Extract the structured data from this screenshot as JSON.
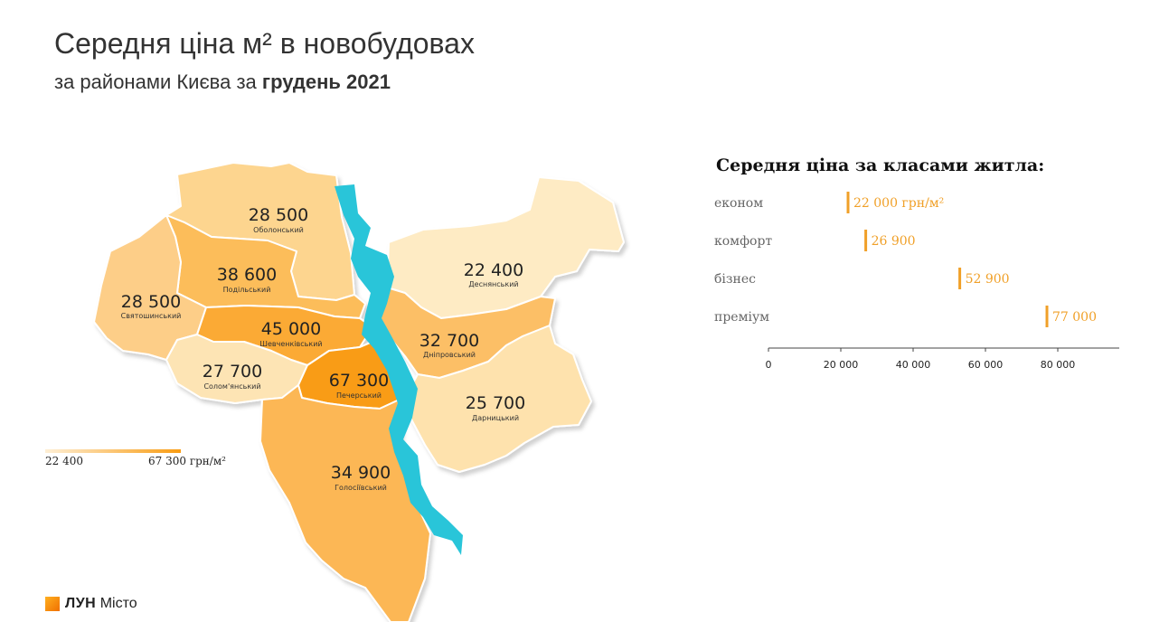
{
  "header": {
    "title": "Середня ціна м² в новобудовах",
    "subtitle_prefix": "за районами Києва за ",
    "subtitle_bold": "грудень 2021"
  },
  "map": {
    "unit": "грн/м²",
    "legend": {
      "min_label": "22 400",
      "max_label": "67 300 грн/м²",
      "min": 22400,
      "max": 67300
    },
    "river_color": "#29c5d9",
    "districts": [
      {
        "id": "obolonskyi",
        "name": "Оболонський",
        "value_label": "28 500",
        "value": 28500,
        "color": "#fdd58f"
      },
      {
        "id": "podilskyi",
        "name": "Подільський",
        "value_label": "38 600",
        "value": 38600,
        "color": "#fcbd5a"
      },
      {
        "id": "sviatoshynskyi",
        "name": "Святошинський",
        "value_label": "28 500",
        "value": 28500,
        "color": "#fdce88"
      },
      {
        "id": "shevchenkivskyi",
        "name": "Шевченківський",
        "value_label": "45 000",
        "value": 45000,
        "color": "#fbaa35"
      },
      {
        "id": "solomianskyi",
        "name": "Солом'янський",
        "value_label": "27 700",
        "value": 27700,
        "color": "#fde4b4"
      },
      {
        "id": "pecherskyi",
        "name": "Печерський",
        "value_label": "67 300",
        "value": 67300,
        "color": "#f99c12"
      },
      {
        "id": "holosiivskyi",
        "name": "Голосіївський",
        "value_label": "34 900",
        "value": 34900,
        "color": "#fcb754"
      },
      {
        "id": "desnianskyi",
        "name": "Деснянський",
        "value_label": "22 400",
        "value": 22400,
        "color": "#feebc4"
      },
      {
        "id": "dniprovskyi",
        "name": "Дніпровський",
        "value_label": "32 700",
        "value": 32700,
        "color": "#fcbf66"
      },
      {
        "id": "darnytskyi",
        "name": "Дарницький",
        "value_label": "25 700",
        "value": 25700,
        "color": "#fee2ad"
      }
    ]
  },
  "chart_data": {
    "type": "bar",
    "title": "Середня ціна за класами житла:",
    "categories": [
      "економ",
      "комфорт",
      "бізнес",
      "преміум"
    ],
    "values": [
      22000,
      26900,
      52900,
      77000
    ],
    "value_labels": [
      "22 000 грн/м²",
      "26 900",
      "52 900",
      "77 000"
    ],
    "xlim": [
      0,
      97000
    ],
    "ticks": [
      0,
      20000,
      40000,
      60000,
      80000
    ],
    "tick_labels": [
      "0",
      "20 000",
      "40 000",
      "60 000",
      "80 000"
    ],
    "bar_color": "#f0a028",
    "grid": false
  },
  "footer": {
    "logo_bold": "ЛУН",
    "logo_text": "Місто"
  }
}
